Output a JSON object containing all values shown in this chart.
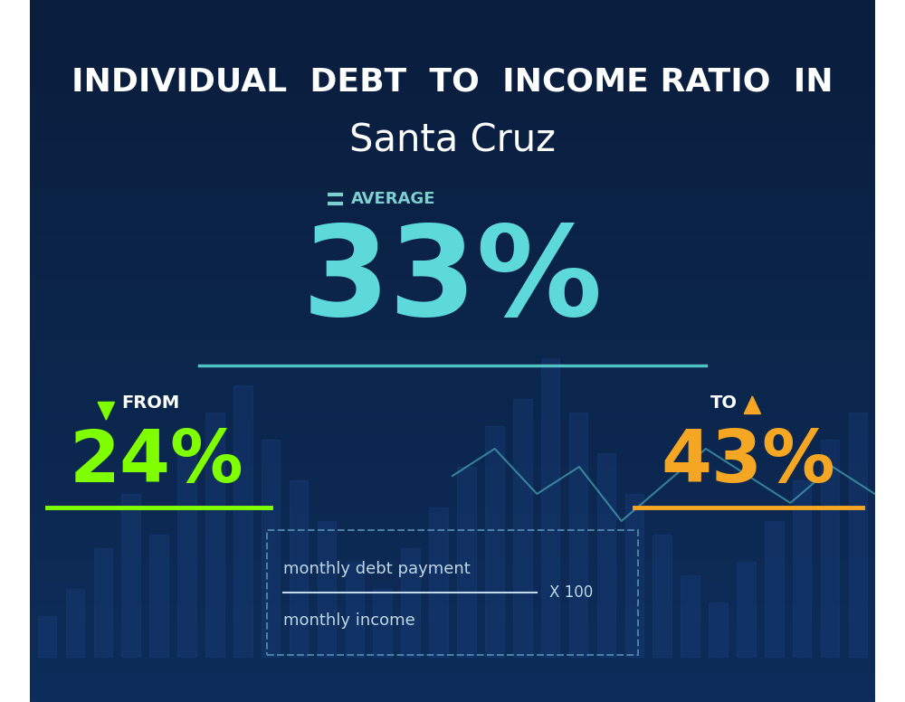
{
  "title_line1": "INDIVIDUAL  DEBT  TO  INCOME RATIO  IN",
  "title_line2": "Santa Cruz",
  "average_label": "AVERAGE",
  "average_value": "33%",
  "from_label": "FROM",
  "from_value": "24%",
  "to_label": "TO",
  "to_value": "43%",
  "formula_numerator": "monthly debt payment",
  "formula_denominator": "monthly income",
  "formula_multiplier": "X 100",
  "bg_color_top": "#0a1e3d",
  "bg_color_bottom": "#0d2d5a",
  "title_color": "#ffffff",
  "subtitle_color": "#ffffff",
  "average_label_color": "#7ecfcf",
  "average_value_color": "#5dd9d9",
  "from_color": "#7fff00",
  "to_color": "#f5a623",
  "label_color": "#ffffff",
  "formula_color": "#c0d8e8",
  "divider_color": "#4fc3c3",
  "from_underline_color": "#7fff00",
  "to_underline_color": "#f5a623",
  "box_border_color": "#4a7fa5"
}
